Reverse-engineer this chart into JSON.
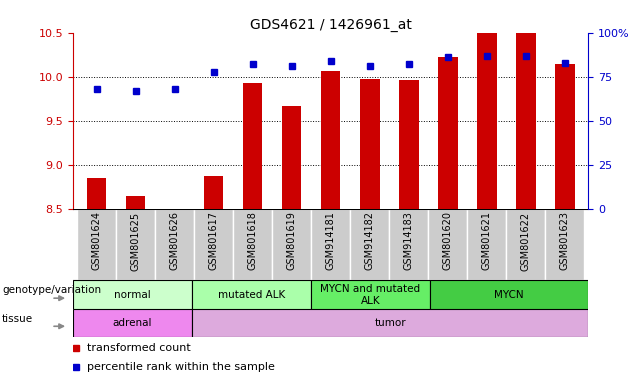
{
  "title": "GDS4621 / 1426961_at",
  "samples": [
    "GSM801624",
    "GSM801625",
    "GSM801626",
    "GSM801617",
    "GSM801618",
    "GSM801619",
    "GSM914181",
    "GSM914182",
    "GSM914183",
    "GSM801620",
    "GSM801621",
    "GSM801622",
    "GSM801623"
  ],
  "transformed_count": [
    8.85,
    8.65,
    8.5,
    8.88,
    9.93,
    9.67,
    10.07,
    9.98,
    9.96,
    10.22,
    10.5,
    10.5,
    10.15
  ],
  "percentile_rank": [
    68,
    67,
    68,
    78,
    82,
    81,
    84,
    81,
    82,
    86,
    87,
    87,
    83
  ],
  "ylim_left": [
    8.5,
    10.5
  ],
  "ylim_right": [
    0,
    100
  ],
  "yticks_left": [
    8.5,
    9.0,
    9.5,
    10.0,
    10.5
  ],
  "yticks_right": [
    0,
    25,
    50,
    75,
    100
  ],
  "ytick_labels_right": [
    "0",
    "25",
    "50",
    "75",
    "100%"
  ],
  "bar_color": "#cc0000",
  "dot_color": "#0000cc",
  "bar_bottom": 8.5,
  "groups": [
    {
      "label": "normal",
      "start": 0,
      "end": 3,
      "color": "#ccffcc"
    },
    {
      "label": "mutated ALK",
      "start": 3,
      "end": 6,
      "color": "#aaffaa"
    },
    {
      "label": "MYCN and mutated\nALK",
      "start": 6,
      "end": 9,
      "color": "#66ee66"
    },
    {
      "label": "MYCN",
      "start": 9,
      "end": 13,
      "color": "#44cc44"
    }
  ],
  "tissues": [
    {
      "label": "adrenal",
      "start": 0,
      "end": 3,
      "color": "#ee88ee"
    },
    {
      "label": "tumor",
      "start": 3,
      "end": 13,
      "color": "#ddaadd"
    }
  ],
  "genotype_label": "genotype/variation",
  "tissue_label": "tissue",
  "legend_items": [
    {
      "label": "transformed count",
      "color": "#cc0000"
    },
    {
      "label": "percentile rank within the sample",
      "color": "#0000cc"
    }
  ],
  "bar_width": 0.5,
  "tick_box_color": "#cccccc",
  "axis_color_left": "#cc0000",
  "axis_color_right": "#0000cc",
  "bg_color": "#ffffff"
}
